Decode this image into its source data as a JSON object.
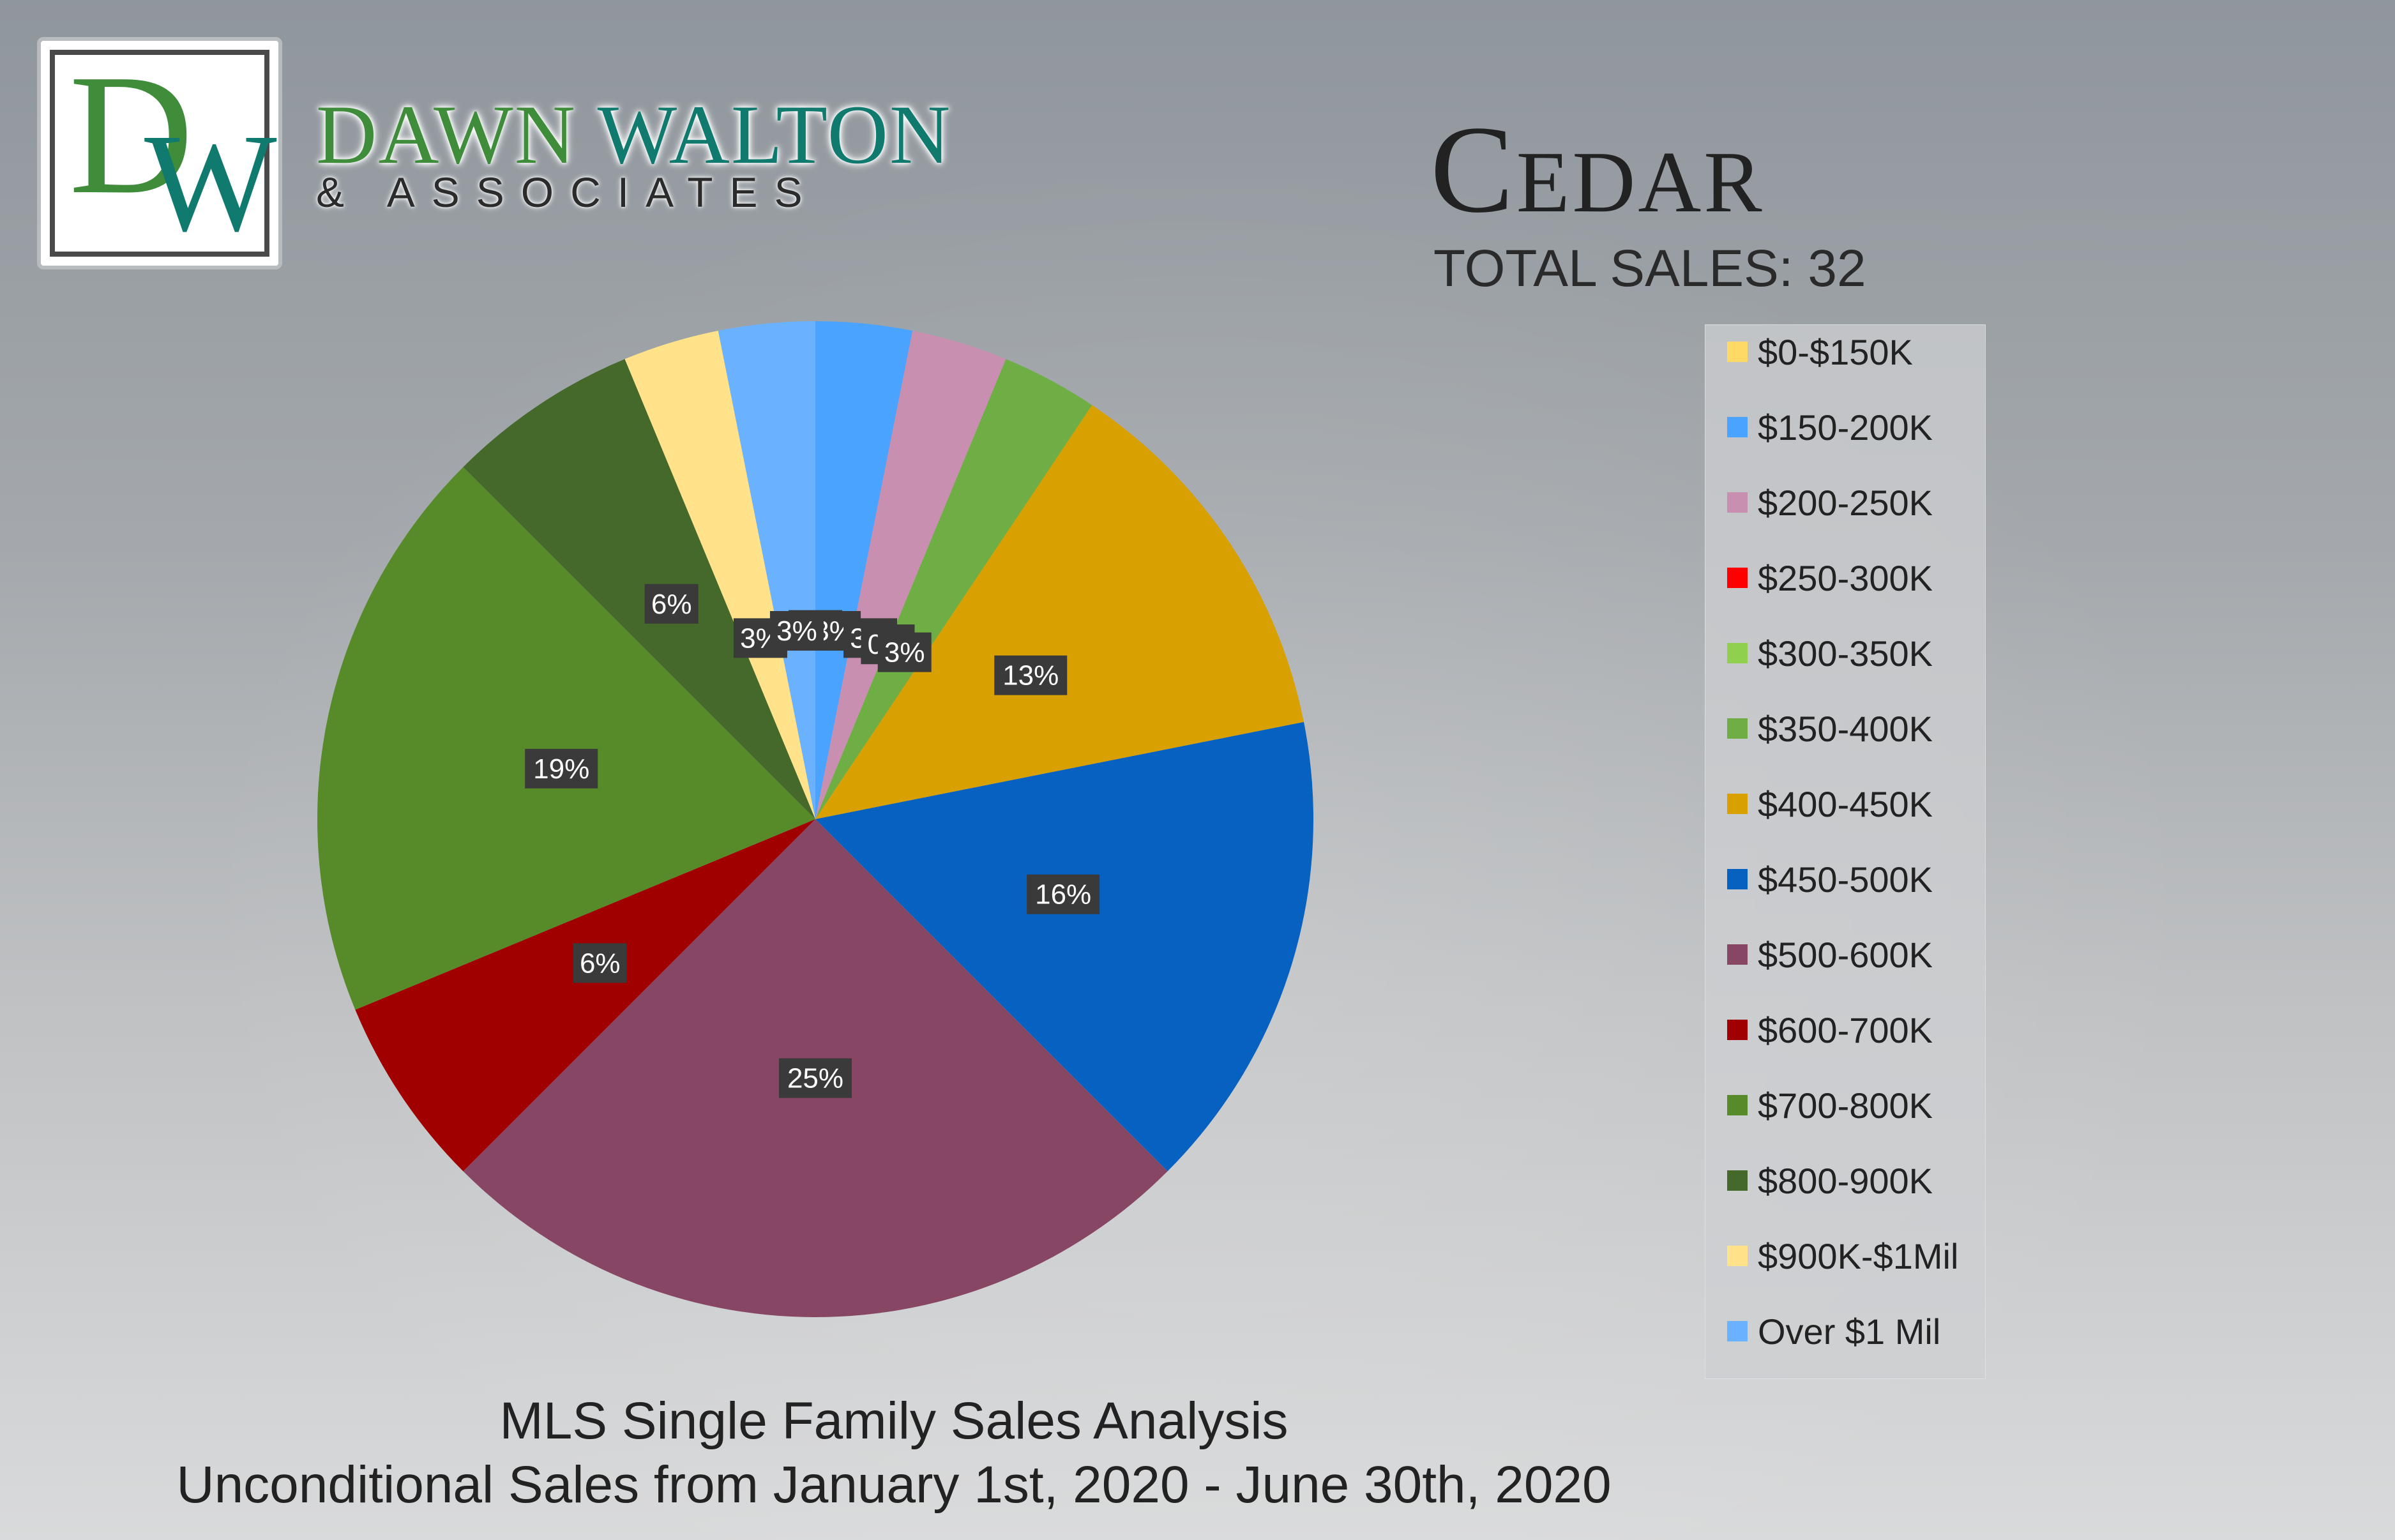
{
  "brand": {
    "logo_d": "D",
    "logo_w": "W",
    "name_part1": "DAWN",
    "name_part2": "WALTON",
    "tagline": "& ASSOCIATES"
  },
  "header": {
    "title": "Cedar",
    "subtitle": "TOTAL SALES: 32"
  },
  "footer": {
    "line1": "MLS Single Family Sales Analysis",
    "line2": "Unconditional Sales from January 1st, 2020 - June 30th, 2020"
  },
  "chart_data": {
    "type": "pie",
    "title": "Cedar",
    "total": 32,
    "legend_position": "right",
    "categories": [
      "$0-$150K",
      "$150-200K",
      "$200-250K",
      "$250-300K",
      "$300-350K",
      "$350-400K",
      "$400-450K",
      "$450-500K",
      "$500-600K",
      "$600-700K",
      "$700-800K",
      "$800-900K",
      "$900K-$1Mil",
      "Over $1 Mil"
    ],
    "values": [
      0,
      1,
      1,
      0,
      0,
      1,
      4,
      5,
      8,
      2,
      6,
      2,
      1,
      1
    ],
    "labels": [
      "0%",
      "3%",
      "3%",
      "0%",
      "0%",
      "3%",
      "13%",
      "16%",
      "25%",
      "6%",
      "19%",
      "6%",
      "3%",
      "3%"
    ],
    "colors": [
      "#ffd966",
      "#4aa3ff",
      "#c98fb0",
      "#ff0000",
      "#8fd14f",
      "#6fae44",
      "#d8a000",
      "#0761c0",
      "#874664",
      "#a00000",
      "#578a28",
      "#44692a",
      "#ffe28a",
      "#6ab2ff"
    ]
  }
}
